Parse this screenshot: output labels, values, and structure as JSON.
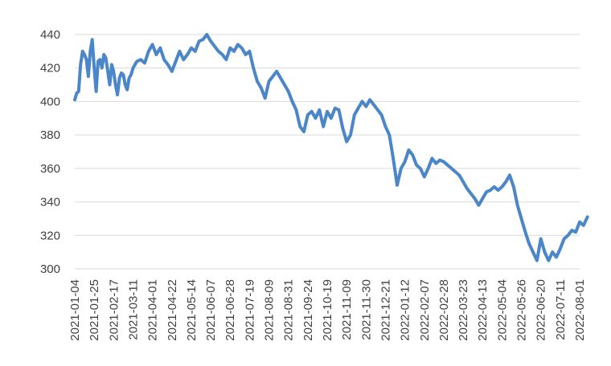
{
  "chart_data": {
    "type": "line",
    "title": "",
    "xlabel": "",
    "ylabel": "",
    "ylim": [
      300,
      440
    ],
    "yticks": [
      300,
      320,
      340,
      360,
      380,
      400,
      420,
      440
    ],
    "grid": "horizontal",
    "legend": "none",
    "colors": {
      "series": "#4a86c8",
      "grid": "#d9d9d9",
      "text": "#404040"
    },
    "categories": [
      "2021-01-04",
      "2021-01-25",
      "2021-02-17",
      "2021-03-11",
      "2021-04-01",
      "2021-04-22",
      "2021-05-14",
      "2021-06-07",
      "2021-06-28",
      "2021-07-19",
      "2021-08-09",
      "2021-08-31",
      "2021-09-24",
      "2021-10-19",
      "2021-11-09",
      "2021-11-30",
      "2021-12-21",
      "2022-01-12",
      "2022-02-07",
      "2022-02-28",
      "2022-03-23",
      "2022-04-13",
      "2022-05-04",
      "2022-05-26",
      "2022-06-20",
      "2022-07-11",
      "2022-08-01"
    ],
    "series": [
      {
        "values": [
          [
            0,
            401
          ],
          [
            0.1,
            405
          ],
          [
            0.2,
            406
          ],
          [
            0.3,
            422
          ],
          [
            0.4,
            430
          ],
          [
            0.5,
            428
          ],
          [
            0.6,
            425
          ],
          [
            0.7,
            415
          ],
          [
            0.8,
            430
          ],
          [
            0.9,
            437
          ],
          [
            1.0,
            420
          ],
          [
            1.1,
            406
          ],
          [
            1.2,
            424
          ],
          [
            1.3,
            425
          ],
          [
            1.4,
            420
          ],
          [
            1.5,
            428
          ],
          [
            1.6,
            426
          ],
          [
            1.7,
            418
          ],
          [
            1.8,
            410
          ],
          [
            1.9,
            422
          ],
          [
            2.0,
            418
          ],
          [
            2.1,
            410
          ],
          [
            2.2,
            404
          ],
          [
            2.3,
            414
          ],
          [
            2.4,
            417
          ],
          [
            2.5,
            416
          ],
          [
            2.6,
            410
          ],
          [
            2.7,
            407
          ],
          [
            2.8,
            414
          ],
          [
            2.9,
            416
          ],
          [
            3.0,
            420
          ],
          [
            3.2,
            424
          ],
          [
            3.4,
            425
          ],
          [
            3.6,
            423
          ],
          [
            3.8,
            430
          ],
          [
            4.0,
            434
          ],
          [
            4.2,
            428
          ],
          [
            4.4,
            432
          ],
          [
            4.6,
            425
          ],
          [
            4.8,
            422
          ],
          [
            5.0,
            418
          ],
          [
            5.2,
            424
          ],
          [
            5.4,
            430
          ],
          [
            5.6,
            425
          ],
          [
            5.8,
            428
          ],
          [
            6.0,
            432
          ],
          [
            6.2,
            430
          ],
          [
            6.4,
            436
          ],
          [
            6.6,
            437
          ],
          [
            6.8,
            440
          ],
          [
            7.0,
            436
          ],
          [
            7.2,
            433
          ],
          [
            7.4,
            430
          ],
          [
            7.6,
            428
          ],
          [
            7.8,
            425
          ],
          [
            8.0,
            432
          ],
          [
            8.2,
            430
          ],
          [
            8.4,
            434
          ],
          [
            8.6,
            432
          ],
          [
            8.8,
            428
          ],
          [
            9.0,
            430
          ],
          [
            9.2,
            420
          ],
          [
            9.4,
            412
          ],
          [
            9.6,
            408
          ],
          [
            9.8,
            402
          ],
          [
            10.0,
            412
          ],
          [
            10.2,
            415
          ],
          [
            10.4,
            418
          ],
          [
            10.6,
            414
          ],
          [
            10.8,
            410
          ],
          [
            11.0,
            406
          ],
          [
            11.2,
            400
          ],
          [
            11.4,
            395
          ],
          [
            11.6,
            385
          ],
          [
            11.8,
            382
          ],
          [
            12.0,
            392
          ],
          [
            12.2,
            394
          ],
          [
            12.4,
            390
          ],
          [
            12.6,
            395
          ],
          [
            12.8,
            385
          ],
          [
            13.0,
            394
          ],
          [
            13.2,
            390
          ],
          [
            13.4,
            396
          ],
          [
            13.6,
            395
          ],
          [
            13.8,
            384
          ],
          [
            14.0,
            376
          ],
          [
            14.2,
            380
          ],
          [
            14.4,
            392
          ],
          [
            14.6,
            396
          ],
          [
            14.8,
            400
          ],
          [
            15.0,
            397
          ],
          [
            15.2,
            401
          ],
          [
            15.4,
            398
          ],
          [
            15.6,
            395
          ],
          [
            15.8,
            392
          ],
          [
            16.0,
            385
          ],
          [
            16.2,
            380
          ],
          [
            16.4,
            366
          ],
          [
            16.6,
            350
          ],
          [
            16.8,
            360
          ],
          [
            17.0,
            364
          ],
          [
            17.2,
            371
          ],
          [
            17.4,
            368
          ],
          [
            17.6,
            362
          ],
          [
            17.8,
            360
          ],
          [
            18.0,
            355
          ],
          [
            18.2,
            360
          ],
          [
            18.4,
            366
          ],
          [
            18.6,
            363
          ],
          [
            18.8,
            365
          ],
          [
            19.0,
            364
          ],
          [
            19.2,
            362
          ],
          [
            19.4,
            360
          ],
          [
            19.6,
            358
          ],
          [
            19.8,
            356
          ],
          [
            20.0,
            352
          ],
          [
            20.2,
            348
          ],
          [
            20.4,
            345
          ],
          [
            20.6,
            342
          ],
          [
            20.8,
            338
          ],
          [
            21.0,
            342
          ],
          [
            21.2,
            346
          ],
          [
            21.4,
            347
          ],
          [
            21.6,
            349
          ],
          [
            21.8,
            347
          ],
          [
            22.0,
            349
          ],
          [
            22.2,
            352
          ],
          [
            22.4,
            356
          ],
          [
            22.6,
            349
          ],
          [
            22.8,
            338
          ],
          [
            23.0,
            330
          ],
          [
            23.2,
            322
          ],
          [
            23.4,
            315
          ],
          [
            23.6,
            310
          ],
          [
            23.8,
            305
          ],
          [
            24.0,
            318
          ],
          [
            24.2,
            310
          ],
          [
            24.4,
            305
          ],
          [
            24.6,
            310
          ],
          [
            24.8,
            307
          ],
          [
            25.0,
            312
          ],
          [
            25.2,
            318
          ],
          [
            25.4,
            320
          ],
          [
            25.6,
            323
          ],
          [
            25.8,
            322
          ],
          [
            26.0,
            328
          ],
          [
            26.2,
            326
          ],
          [
            26.4,
            331
          ]
        ]
      }
    ]
  }
}
